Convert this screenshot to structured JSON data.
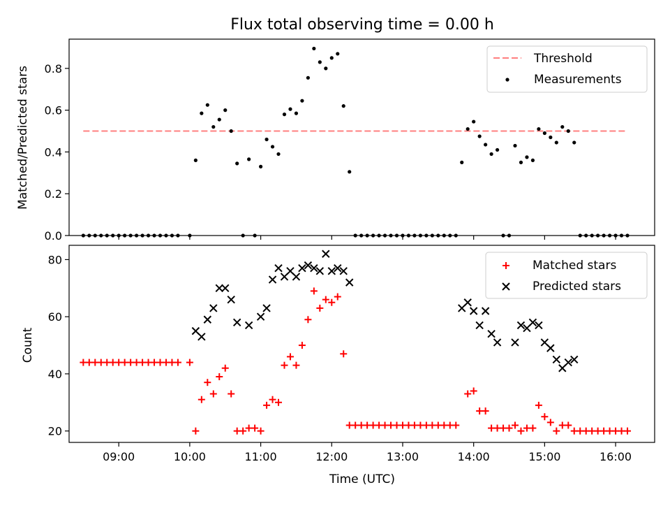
{
  "title": "Flux total observing time = 0.00 h",
  "chart_data": [
    {
      "type": "scatter",
      "panel": "top",
      "title": "Flux total observing time = 0.00 h",
      "xlabel": "",
      "ylabel": "Matched/Predicted stars",
      "xlim": [
        "08:18",
        "16:33"
      ],
      "ylim": [
        0,
        0.94
      ],
      "yticks": [
        0.0,
        0.2,
        0.4,
        0.6,
        0.8
      ],
      "ytick_labels": [
        "0.0",
        "0.2",
        "0.4",
        "0.6",
        "0.8"
      ],
      "legend_position": "upper right",
      "threshold": {
        "name": "Threshold",
        "value": 0.5,
        "x_start": "08:30",
        "x_end": "16:08",
        "color": "#ff7f7f",
        "style": "dashed"
      },
      "series": [
        {
          "name": "Measurements",
          "color": "#000000",
          "marker": "dot",
          "points": [
            [
              "08:30",
              0
            ],
            [
              "08:35",
              0
            ],
            [
              "08:40",
              0
            ],
            [
              "08:45",
              0
            ],
            [
              "08:50",
              0
            ],
            [
              "08:55",
              0
            ],
            [
              "09:00",
              0
            ],
            [
              "09:05",
              0
            ],
            [
              "09:10",
              0
            ],
            [
              "09:15",
              0
            ],
            [
              "09:20",
              0
            ],
            [
              "09:25",
              0
            ],
            [
              "09:30",
              0
            ],
            [
              "09:35",
              0
            ],
            [
              "09:40",
              0
            ],
            [
              "09:45",
              0
            ],
            [
              "09:50",
              0
            ],
            [
              "10:00",
              0
            ],
            [
              "10:05",
              0.36
            ],
            [
              "10:10",
              0.585
            ],
            [
              "10:15",
              0.625
            ],
            [
              "10:20",
              0.52
            ],
            [
              "10:25",
              0.555
            ],
            [
              "10:30",
              0.6
            ],
            [
              "10:35",
              0.5
            ],
            [
              "10:40",
              0.345
            ],
            [
              "10:45",
              0
            ],
            [
              "10:50",
              0.365
            ],
            [
              "10:55",
              0
            ],
            [
              "11:00",
              0.33
            ],
            [
              "11:05",
              0.46
            ],
            [
              "11:10",
              0.425
            ],
            [
              "11:15",
              0.39
            ],
            [
              "11:20",
              0.58
            ],
            [
              "11:25",
              0.605
            ],
            [
              "11:30",
              0.585
            ],
            [
              "11:35",
              0.645
            ],
            [
              "11:40",
              0.755
            ],
            [
              "11:45",
              0.895
            ],
            [
              "11:50",
              0.83
            ],
            [
              "11:55",
              0.8
            ],
            [
              "12:00",
              0.85
            ],
            [
              "12:05",
              0.87
            ],
            [
              "12:10",
              0.62
            ],
            [
              "12:15",
              0.305
            ],
            [
              "12:20",
              0
            ],
            [
              "12:25",
              0
            ],
            [
              "12:30",
              0
            ],
            [
              "12:35",
              0
            ],
            [
              "12:40",
              0
            ],
            [
              "12:45",
              0
            ],
            [
              "12:50",
              0
            ],
            [
              "12:55",
              0
            ],
            [
              "13:00",
              0
            ],
            [
              "13:05",
              0
            ],
            [
              "13:10",
              0
            ],
            [
              "13:15",
              0
            ],
            [
              "13:20",
              0
            ],
            [
              "13:25",
              0
            ],
            [
              "13:30",
              0
            ],
            [
              "13:35",
              0
            ],
            [
              "13:40",
              0
            ],
            [
              "13:45",
              0
            ],
            [
              "13:50",
              0.35
            ],
            [
              "13:55",
              0.51
            ],
            [
              "14:00",
              0.545
            ],
            [
              "14:05",
              0.475
            ],
            [
              "14:10",
              0.435
            ],
            [
              "14:15",
              0.39
            ],
            [
              "14:20",
              0.41
            ],
            [
              "14:25",
              0
            ],
            [
              "14:30",
              0
            ],
            [
              "14:35",
              0.43
            ],
            [
              "14:40",
              0.35
            ],
            [
              "14:45",
              0.375
            ],
            [
              "14:50",
              0.36
            ],
            [
              "14:55",
              0.51
            ],
            [
              "15:00",
              0.49
            ],
            [
              "15:05",
              0.47
            ],
            [
              "15:10",
              0.445
            ],
            [
              "15:15",
              0.52
            ],
            [
              "15:20",
              0.5
            ],
            [
              "15:25",
              0.445
            ],
            [
              "15:30",
              0
            ],
            [
              "15:35",
              0
            ],
            [
              "15:40",
              0
            ],
            [
              "15:45",
              0
            ],
            [
              "15:50",
              0
            ],
            [
              "15:55",
              0
            ],
            [
              "16:00",
              0
            ],
            [
              "16:05",
              0
            ],
            [
              "16:10",
              0
            ]
          ]
        }
      ]
    },
    {
      "type": "scatter",
      "panel": "bottom",
      "xlabel": "Time (UTC)",
      "ylabel": "Count",
      "xlim": [
        "08:18",
        "16:33"
      ],
      "ylim": [
        16,
        85
      ],
      "xticks": [
        "09:00",
        "10:00",
        "11:00",
        "12:00",
        "13:00",
        "14:00",
        "15:00",
        "16:00"
      ],
      "yticks": [
        20,
        40,
        60,
        80
      ],
      "ytick_labels": [
        "20",
        "40",
        "60",
        "80"
      ],
      "legend_position": "upper right",
      "series": [
        {
          "name": "Matched stars",
          "color": "#ff0000",
          "marker": "plus",
          "points": [
            [
              "08:30",
              44
            ],
            [
              "08:35",
              44
            ],
            [
              "08:40",
              44
            ],
            [
              "08:45",
              44
            ],
            [
              "08:50",
              44
            ],
            [
              "08:55",
              44
            ],
            [
              "09:00",
              44
            ],
            [
              "09:05",
              44
            ],
            [
              "09:10",
              44
            ],
            [
              "09:15",
              44
            ],
            [
              "09:20",
              44
            ],
            [
              "09:25",
              44
            ],
            [
              "09:30",
              44
            ],
            [
              "09:35",
              44
            ],
            [
              "09:40",
              44
            ],
            [
              "09:45",
              44
            ],
            [
              "09:50",
              44
            ],
            [
              "10:00",
              44
            ],
            [
              "10:05",
              20
            ],
            [
              "10:10",
              31
            ],
            [
              "10:15",
              37
            ],
            [
              "10:20",
              33
            ],
            [
              "10:25",
              39
            ],
            [
              "10:30",
              42
            ],
            [
              "10:35",
              33
            ],
            [
              "10:40",
              20
            ],
            [
              "10:45",
              20
            ],
            [
              "10:50",
              21
            ],
            [
              "10:55",
              21
            ],
            [
              "11:00",
              20
            ],
            [
              "11:05",
              29
            ],
            [
              "11:10",
              31
            ],
            [
              "11:15",
              30
            ],
            [
              "11:20",
              43
            ],
            [
              "11:25",
              46
            ],
            [
              "11:30",
              43
            ],
            [
              "11:35",
              50
            ],
            [
              "11:40",
              59
            ],
            [
              "11:45",
              69
            ],
            [
              "11:50",
              63
            ],
            [
              "11:55",
              66
            ],
            [
              "12:00",
              65
            ],
            [
              "12:05",
              67
            ],
            [
              "12:10",
              47
            ],
            [
              "12:15",
              22
            ],
            [
              "12:20",
              22
            ],
            [
              "12:25",
              22
            ],
            [
              "12:30",
              22
            ],
            [
              "12:35",
              22
            ],
            [
              "12:40",
              22
            ],
            [
              "12:45",
              22
            ],
            [
              "12:50",
              22
            ],
            [
              "12:55",
              22
            ],
            [
              "13:00",
              22
            ],
            [
              "13:05",
              22
            ],
            [
              "13:10",
              22
            ],
            [
              "13:15",
              22
            ],
            [
              "13:20",
              22
            ],
            [
              "13:25",
              22
            ],
            [
              "13:30",
              22
            ],
            [
              "13:35",
              22
            ],
            [
              "13:40",
              22
            ],
            [
              "13:45",
              22
            ],
            [
              "13:55",
              33
            ],
            [
              "14:00",
              34
            ],
            [
              "14:05",
              27
            ],
            [
              "14:10",
              27
            ],
            [
              "14:15",
              21
            ],
            [
              "14:20",
              21
            ],
            [
              "14:25",
              21
            ],
            [
              "14:30",
              21
            ],
            [
              "14:35",
              22
            ],
            [
              "14:40",
              20
            ],
            [
              "14:45",
              21
            ],
            [
              "14:50",
              21
            ],
            [
              "14:55",
              29
            ],
            [
              "15:00",
              25
            ],
            [
              "15:05",
              23
            ],
            [
              "15:10",
              20
            ],
            [
              "15:15",
              22
            ],
            [
              "15:20",
              22
            ],
            [
              "15:25",
              20
            ],
            [
              "15:30",
              20
            ],
            [
              "15:35",
              20
            ],
            [
              "15:40",
              20
            ],
            [
              "15:45",
              20
            ],
            [
              "15:50",
              20
            ],
            [
              "15:55",
              20
            ],
            [
              "16:00",
              20
            ],
            [
              "16:05",
              20
            ],
            [
              "16:10",
              20
            ]
          ]
        },
        {
          "name": "Predicted stars",
          "color": "#000000",
          "marker": "x",
          "points": [
            [
              "10:05",
              55
            ],
            [
              "10:10",
              53
            ],
            [
              "10:15",
              59
            ],
            [
              "10:20",
              63
            ],
            [
              "10:25",
              70
            ],
            [
              "10:30",
              70
            ],
            [
              "10:35",
              66
            ],
            [
              "10:40",
              58
            ],
            [
              "10:50",
              57
            ],
            [
              "11:00",
              60
            ],
            [
              "11:05",
              63
            ],
            [
              "11:10",
              73
            ],
            [
              "11:15",
              77
            ],
            [
              "11:20",
              74
            ],
            [
              "11:25",
              76
            ],
            [
              "11:30",
              74
            ],
            [
              "11:35",
              77
            ],
            [
              "11:40",
              78
            ],
            [
              "11:45",
              77
            ],
            [
              "11:50",
              76
            ],
            [
              "11:55",
              82
            ],
            [
              "12:00",
              76
            ],
            [
              "12:05",
              77
            ],
            [
              "12:10",
              76
            ],
            [
              "12:15",
              72
            ],
            [
              "13:50",
              63
            ],
            [
              "13:55",
              65
            ],
            [
              "14:00",
              62
            ],
            [
              "14:05",
              57
            ],
            [
              "14:10",
              62
            ],
            [
              "14:15",
              54
            ],
            [
              "14:20",
              51
            ],
            [
              "14:35",
              51
            ],
            [
              "14:40",
              57
            ],
            [
              "14:45",
              56
            ],
            [
              "14:50",
              58
            ],
            [
              "14:55",
              57
            ],
            [
              "15:00",
              51
            ],
            [
              "15:05",
              49
            ],
            [
              "15:10",
              45
            ],
            [
              "15:15",
              42
            ],
            [
              "15:20",
              44
            ],
            [
              "15:25",
              45
            ]
          ]
        }
      ]
    }
  ]
}
